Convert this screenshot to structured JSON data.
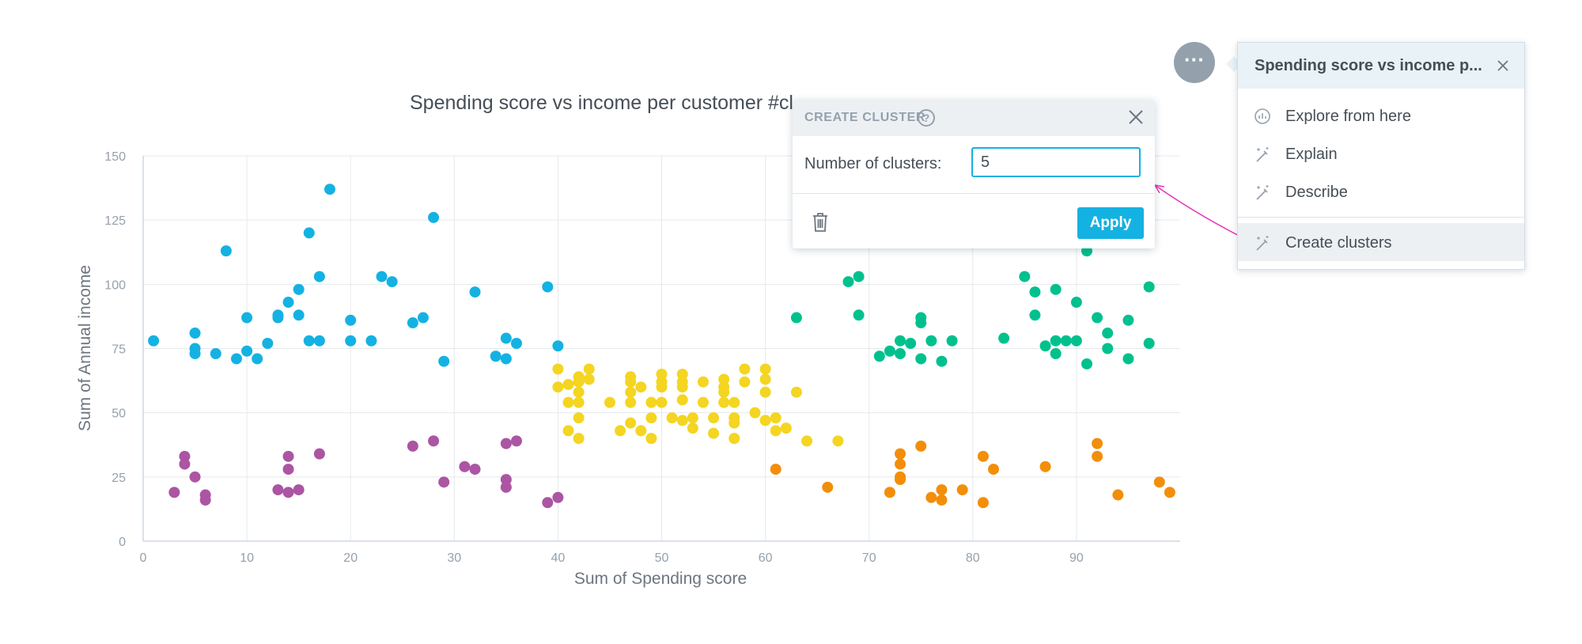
{
  "colors": {
    "accent": "#14b2e2",
    "cluster_blue": "#14b2e2",
    "cluster_purple": "#ab55a3",
    "cluster_yellow": "#f4d521",
    "cluster_green": "#00c18d",
    "cluster_orange": "#f38e09",
    "annotation_arrow": "#e834b4"
  },
  "chart": {
    "title": "Spending score vs income per customer #cl",
    "xlabel": "Sum of Spending score",
    "ylabel": "Sum of Annual income"
  },
  "chart_data": {
    "type": "scatter",
    "title": "Spending score vs income per customer #cl",
    "xlabel": "Sum of Spending score",
    "ylabel": "Sum of Annual income",
    "xlim": [
      0,
      100
    ],
    "ylim": [
      0,
      150
    ],
    "xticks": [
      "0",
      "10",
      "20",
      "30",
      "40",
      "50",
      "60",
      "70",
      "80",
      "90"
    ],
    "yticks": [
      "0",
      "25",
      "50",
      "75",
      "100",
      "125",
      "150"
    ],
    "grid": true,
    "series": [
      {
        "color": "#14b2e2",
        "points": [
          [
            1,
            78
          ],
          [
            5,
            81
          ],
          [
            5,
            75
          ],
          [
            5,
            73
          ],
          [
            7,
            73
          ],
          [
            8,
            113
          ],
          [
            9,
            71
          ],
          [
            10,
            74
          ],
          [
            10,
            87
          ],
          [
            11,
            71
          ],
          [
            12,
            77
          ],
          [
            13,
            88
          ],
          [
            13,
            87
          ],
          [
            14,
            93
          ],
          [
            15,
            98
          ],
          [
            15,
            88
          ],
          [
            16,
            120
          ],
          [
            16,
            78
          ],
          [
            17,
            103
          ],
          [
            17,
            78
          ],
          [
            18,
            137
          ],
          [
            20,
            86
          ],
          [
            20,
            78
          ],
          [
            22,
            78
          ],
          [
            23,
            103
          ],
          [
            24,
            101
          ],
          [
            26,
            85
          ],
          [
            27,
            87
          ],
          [
            28,
            126
          ],
          [
            29,
            70
          ],
          [
            32,
            97
          ],
          [
            34,
            72
          ],
          [
            35,
            79
          ],
          [
            35,
            71
          ],
          [
            36,
            77
          ],
          [
            39,
            99
          ],
          [
            40,
            76
          ]
        ]
      },
      {
        "color": "#ab55a3",
        "points": [
          [
            3,
            19
          ],
          [
            4,
            33
          ],
          [
            4,
            30
          ],
          [
            5,
            25
          ],
          [
            6,
            18
          ],
          [
            6,
            16
          ],
          [
            13,
            20
          ],
          [
            14,
            33
          ],
          [
            14,
            28
          ],
          [
            14,
            19
          ],
          [
            15,
            20
          ],
          [
            17,
            34
          ],
          [
            26,
            37
          ],
          [
            28,
            39
          ],
          [
            29,
            23
          ],
          [
            31,
            29
          ],
          [
            32,
            28
          ],
          [
            35,
            38
          ],
          [
            35,
            24
          ],
          [
            35,
            21
          ],
          [
            36,
            39
          ],
          [
            39,
            15
          ],
          [
            40,
            17
          ]
        ]
      },
      {
        "color": "#f4d521",
        "points": [
          [
            40,
            67
          ],
          [
            40,
            60
          ],
          [
            41,
            61
          ],
          [
            41,
            54
          ],
          [
            41,
            43
          ],
          [
            42,
            64
          ],
          [
            42,
            62
          ],
          [
            42,
            58
          ],
          [
            42,
            54
          ],
          [
            42,
            48
          ],
          [
            42,
            40
          ],
          [
            43,
            67
          ],
          [
            43,
            63
          ],
          [
            45,
            54
          ],
          [
            46,
            43
          ],
          [
            47,
            64
          ],
          [
            47,
            62
          ],
          [
            47,
            58
          ],
          [
            47,
            54
          ],
          [
            47,
            46
          ],
          [
            48,
            60
          ],
          [
            48,
            43
          ],
          [
            49,
            54
          ],
          [
            49,
            48
          ],
          [
            49,
            40
          ],
          [
            50,
            65
          ],
          [
            50,
            62
          ],
          [
            50,
            60
          ],
          [
            50,
            54
          ],
          [
            51,
            48
          ],
          [
            52,
            65
          ],
          [
            52,
            62
          ],
          [
            52,
            60
          ],
          [
            52,
            55
          ],
          [
            52,
            47
          ],
          [
            53,
            48
          ],
          [
            53,
            44
          ],
          [
            54,
            62
          ],
          [
            54,
            54
          ],
          [
            55,
            48
          ],
          [
            55,
            42
          ],
          [
            56,
            63
          ],
          [
            56,
            60
          ],
          [
            56,
            58
          ],
          [
            56,
            54
          ],
          [
            57,
            54
          ],
          [
            57,
            48
          ],
          [
            57,
            46
          ],
          [
            57,
            40
          ],
          [
            58,
            62
          ],
          [
            58,
            67
          ],
          [
            59,
            50
          ],
          [
            60,
            67
          ],
          [
            60,
            63
          ],
          [
            60,
            58
          ],
          [
            60,
            47
          ],
          [
            61,
            48
          ],
          [
            61,
            43
          ],
          [
            62,
            44
          ],
          [
            63,
            58
          ],
          [
            64,
            39
          ],
          [
            67,
            39
          ]
        ]
      },
      {
        "color": "#00c18d",
        "points": [
          [
            63,
            87
          ],
          [
            68,
            101
          ],
          [
            69,
            103
          ],
          [
            69,
            88
          ],
          [
            71,
            72
          ],
          [
            72,
            74
          ],
          [
            73,
            78
          ],
          [
            73,
            73
          ],
          [
            74,
            77
          ],
          [
            75,
            87
          ],
          [
            75,
            85
          ],
          [
            75,
            71
          ],
          [
            76,
            78
          ],
          [
            77,
            70
          ],
          [
            78,
            78
          ],
          [
            83,
            79
          ],
          [
            85,
            103
          ],
          [
            86,
            97
          ],
          [
            86,
            88
          ],
          [
            87,
            76
          ],
          [
            88,
            98
          ],
          [
            88,
            78
          ],
          [
            88,
            73
          ],
          [
            89,
            78
          ],
          [
            90,
            93
          ],
          [
            90,
            78
          ],
          [
            91,
            113
          ],
          [
            91,
            69
          ],
          [
            92,
            87
          ],
          [
            93,
            81
          ],
          [
            93,
            75
          ],
          [
            95,
            86
          ],
          [
            95,
            71
          ],
          [
            97,
            99
          ],
          [
            97,
            77
          ]
        ]
      },
      {
        "color": "#f38e09",
        "points": [
          [
            61,
            28
          ],
          [
            66,
            21
          ],
          [
            72,
            19
          ],
          [
            73,
            34
          ],
          [
            73,
            30
          ],
          [
            73,
            25
          ],
          [
            73,
            24
          ],
          [
            75,
            37
          ],
          [
            76,
            17
          ],
          [
            77,
            20
          ],
          [
            77,
            16
          ],
          [
            79,
            20
          ],
          [
            81,
            33
          ],
          [
            81,
            15
          ],
          [
            82,
            28
          ],
          [
            87,
            29
          ],
          [
            92,
            38
          ],
          [
            92,
            33
          ],
          [
            94,
            18
          ],
          [
            98,
            23
          ],
          [
            99,
            19
          ]
        ]
      }
    ]
  },
  "dialog": {
    "title": "CREATE CLUSTER",
    "help_symbol": "?",
    "field_label": "Number of clusters:",
    "clusters_value": "5",
    "apply_label": "Apply"
  },
  "menu": {
    "more_symbol": "···",
    "title": "Spending score vs income p...",
    "items": [
      {
        "label": "Explore from here",
        "icon": "explore-icon"
      },
      {
        "label": "Explain",
        "icon": "magic-wand-icon"
      },
      {
        "label": "Describe",
        "icon": "magic-wand-icon"
      },
      {
        "label": "Create clusters",
        "icon": "magic-wand-icon"
      }
    ]
  }
}
